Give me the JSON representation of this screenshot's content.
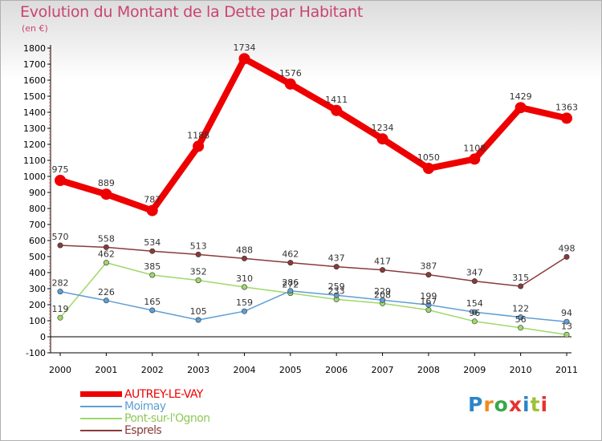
{
  "header": {
    "title": "Evolution du Montant de la Dette par Habitant",
    "subtitle": "(en €)"
  },
  "logo": {
    "text": "Proxiti",
    "colors": [
      "#2c86c8",
      "#f08a1c",
      "#3aa74a",
      "#e8312f",
      "#2c86c8",
      "#a0c03a",
      "#e8312f"
    ]
  },
  "chart_data": {
    "type": "line",
    "x": [
      2000,
      2001,
      2002,
      2003,
      2004,
      2005,
      2006,
      2007,
      2008,
      2009,
      2010,
      2011
    ],
    "ylim": [
      -100,
      1800
    ],
    "yticks": [
      -100,
      0,
      100,
      200,
      300,
      400,
      500,
      600,
      700,
      800,
      900,
      1000,
      1100,
      1200,
      1300,
      1400,
      1500,
      1600,
      1700,
      1800
    ],
    "grid": false,
    "legend_position": "bottom-left",
    "series": [
      {
        "name": "AUTREY-LE-VAY",
        "color": "#ee0000",
        "values": [
          975,
          889,
          787,
          1188,
          1734,
          1576,
          1411,
          1234,
          1050,
          1108,
          1429,
          1363
        ]
      },
      {
        "name": "Moimay",
        "color": "#5f9fd4",
        "values": [
          282,
          226,
          165,
          105,
          159,
          286,
          259,
          229,
          199,
          154,
          122,
          94
        ]
      },
      {
        "name": "Pont-sur-l'Ognon",
        "color": "#9fd86a",
        "values": [
          119,
          462,
          385,
          352,
          310,
          272,
          233,
          208,
          167,
          96,
          56,
          13
        ]
      },
      {
        "name": "Esprels",
        "color": "#8a3a3a",
        "values": [
          570,
          558,
          534,
          513,
          488,
          462,
          437,
          417,
          387,
          347,
          315,
          498
        ]
      }
    ]
  }
}
